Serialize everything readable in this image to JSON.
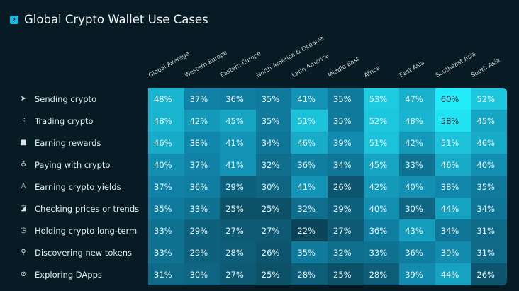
{
  "title": "Global Crypto Wallet Use Cases",
  "title_icon": "chevron-right-icon",
  "chart_data": {
    "type": "heatmap",
    "title": "Global Crypto Wallet Use Cases",
    "columns": [
      "Global Average",
      "Western Europe",
      "Eastern Europe",
      "North America & Oceania",
      "Latin America",
      "Middle East",
      "Africa",
      "East Asia",
      "Southeast Asia",
      "South Asia"
    ],
    "rows": [
      {
        "label": "Sending crypto",
        "icon": "send-icon",
        "values": [
          48,
          37,
          36,
          35,
          41,
          35,
          53,
          47,
          60,
          52
        ]
      },
      {
        "label": "Trading crypto",
        "icon": "candlestick-icon",
        "values": [
          48,
          42,
          45,
          35,
          51,
          35,
          52,
          48,
          58,
          45
        ]
      },
      {
        "label": "Earning rewards",
        "icon": "gift-icon",
        "values": [
          46,
          38,
          41,
          34,
          46,
          39,
          51,
          42,
          51,
          46
        ]
      },
      {
        "label": "Paying with crypto",
        "icon": "hand-coin-icon",
        "values": [
          40,
          37,
          41,
          32,
          36,
          34,
          45,
          33,
          46,
          40
        ]
      },
      {
        "label": "Earning crypto yields",
        "icon": "user-coins-icon",
        "values": [
          37,
          36,
          29,
          30,
          41,
          26,
          42,
          40,
          38,
          35
        ]
      },
      {
        "label": "Checking prices or trends",
        "icon": "chart-icon",
        "values": [
          35,
          33,
          25,
          25,
          32,
          29,
          40,
          30,
          44,
          34
        ]
      },
      {
        "label": "Holding crypto long-term",
        "icon": "clock-coin-icon",
        "values": [
          33,
          29,
          27,
          27,
          22,
          27,
          36,
          43,
          34,
          31
        ]
      },
      {
        "label": "Discovering new tokens",
        "icon": "search-icon",
        "values": [
          33,
          29,
          28,
          26,
          35,
          32,
          33,
          36,
          39,
          31
        ]
      },
      {
        "label": "Exploring DApps",
        "icon": "compass-icon",
        "values": [
          31,
          30,
          27,
          25,
          28,
          25,
          28,
          39,
          44,
          26
        ]
      }
    ],
    "unit": "%",
    "colors": {
      "low": "#0c4559",
      "mid": "#1186ab",
      "high": "#22ecfa"
    }
  }
}
